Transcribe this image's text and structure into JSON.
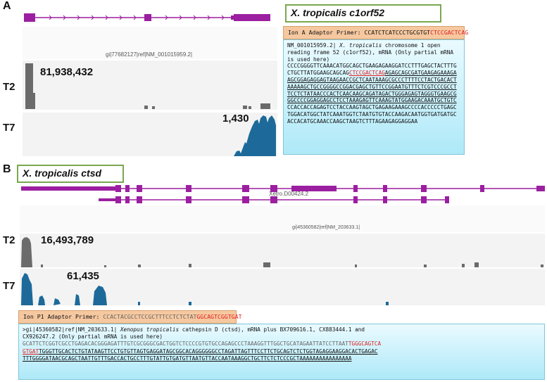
{
  "panelA": {
    "letter": "A",
    "gi_label": "gi|77682127|ref|NM_001015959.2|",
    "title_plain": "X. tropicalis ",
    "title_gene": "c1orf52",
    "t2": {
      "label": "T2",
      "count": "81,938,432"
    },
    "t7": {
      "label": "T7",
      "count": "1,430"
    },
    "primer": {
      "prefix": "Ion A Adaptor Primer: ",
      "seq_black": "CCATCTCATCCCTGCGTGT",
      "seq_red": "CTCCGACTCAG"
    },
    "seq": {
      "hdr1": "NM_001015959.2| ",
      "hdr1_it": "X. tropicalis",
      "hdr1_rest": " chromosome 1 open",
      "hdr2": "reading frame 52 (c1orf52), mRNA (Only partial mRNA",
      "hdr3": "is used here)",
      "l1": "CCCCGGGGTTCAAACATGGCAGCTGAAGAGAAGGATCCTTTGAGCTACTTTG",
      "l2a": "CTGCTTATGGAAGCAGCAG",
      "l2b": "CTCCGACTCAG",
      "l2c": "AGAGCAGCGATGAAGAGAAAGA",
      "l3": "AGCGGAGAGGAGTAAGAACCGCTCAATAAAGCGCCCTTTTCCTACTGACACT",
      "l4": "AAAAAGCTGCCGGGGCCGGACGAGCTGTTCCGGAATGTTTCTCGTCCCGCCT",
      "l5": "TCCTCTATAACCCACTCAACAAGCAGATAGACTGGGAGAGTAGGGTGAAGCG",
      "l6": "GGCCCCGGAGGAGCCTCCTAAAGAGTTCAAAGTATGGAAGACAAATGCTGTC",
      "l7": "CCACCACCAGAGTCCTACCAAGTAGCTGAGAAGAAAGCCCCACCCCCTGAGC",
      "l8": "TGGACATGGCTATCAAATGGTCTAATGTGTACCAAGACAATGGTGATGATGC",
      "l9": "ACCACATGCAAACCAAGCTAAGTCTTTAGAAGAGGAGGAA"
    }
  },
  "panelB": {
    "letter": "B",
    "title_plain": "X. tropicalis ",
    "title_gene": "ctsd",
    "xetro_label": "Xetro.D00424.2",
    "gi_label": "gi|45360582|ref|NM_203633.1|",
    "t2": {
      "label": "T2",
      "count": "16,493,789"
    },
    "t7": {
      "label": "T7",
      "count": "61,435"
    },
    "primer": {
      "prefix": "Ion P1 Adaptor Primer: ",
      "seq_black": "CCACTACGCCTCCGCTTTCCTCTCTAT",
      "seq_red": "GGCAGTCGGTGAT"
    },
    "seq": {
      "hdr1a": ">gi|45360582|ref|NM_203633.1| ",
      "hdr1_it": "Xenopus tropicalis",
      "hdr1b": " cathepsin D (ctsd), mRNA plus BX709616.1, CX883444.1 and",
      "hdr2": "CX926247.2 (Only partial mRNA is used here)",
      "l1a": "GCATTCTCGGTCGCCTGAGACACGGGAGATTTGTCGCGGGCGACTGGTCTCCCCGTGTGCCAGAGCCCTAAAGGTTTGGCTGCATAGAATTATCCTTAAT",
      "l1b": "TGGGCAGTCA",
      "l2a": "GTGAT",
      "l2b": "TGGGTTGCACTCTGTATAAGTTCCTGTGTTAGTGAGGATAGCGGCACAGGGGGGCCTAGATTAGTTTCCTTCTGCAGTCTCTGGTAGAGGAAGGACACTGAGAC",
      "l3": "TTTGGGGATAACGCAGCTAATTGTTTGACCACTGCCTTTGTATTGTGATGTTAATGTTACCAATAAAGGCTGCTTCTCTCCCGCTAAAAAAAAAAAAAAAA"
    }
  }
}
